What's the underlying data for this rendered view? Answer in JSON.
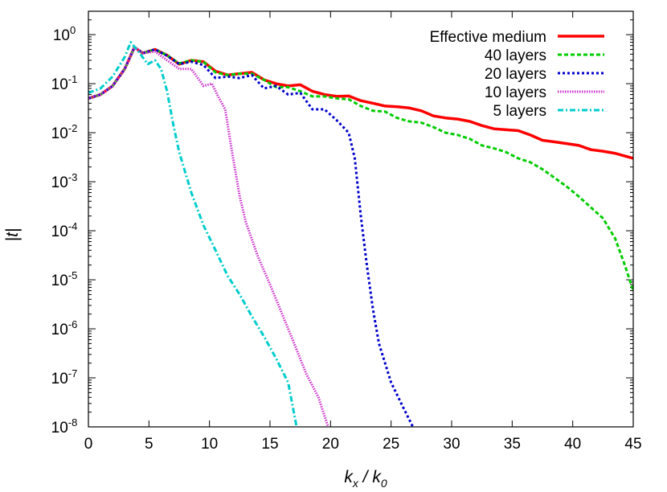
{
  "chart_data": {
    "type": "line",
    "title": "",
    "xlabel": "k_x / k_0",
    "ylabel": "|t|",
    "xlim": [
      0,
      45
    ],
    "ylim": [
      1e-08,
      3
    ],
    "yscale": "log",
    "xticks": [
      0,
      5,
      10,
      15,
      20,
      25,
      30,
      35,
      40,
      45
    ],
    "yticks": [
      {
        "exp": -8,
        "base": "10",
        "sup": "-8"
      },
      {
        "exp": -7,
        "base": "10",
        "sup": "-7"
      },
      {
        "exp": -6,
        "base": "10",
        "sup": "-6"
      },
      {
        "exp": -5,
        "base": "10",
        "sup": "-5"
      },
      {
        "exp": -4,
        "base": "10",
        "sup": "-4"
      },
      {
        "exp": -3,
        "base": "10",
        "sup": "-3"
      },
      {
        "exp": -2,
        "base": "10",
        "sup": "-2"
      },
      {
        "exp": -1,
        "base": "10",
        "sup": "-1"
      },
      {
        "exp": 0,
        "base": "10",
        "sup": "0"
      }
    ],
    "legend_position": "top-right",
    "series": [
      {
        "name": "Effective medium",
        "color": "#ff0000",
        "dash": "solid",
        "points": [
          [
            0,
            0.05
          ],
          [
            1,
            0.06
          ],
          [
            2,
            0.09
          ],
          [
            3,
            0.2
          ],
          [
            3.8,
            0.55
          ],
          [
            4.5,
            0.42
          ],
          [
            5.5,
            0.5
          ],
          [
            6.5,
            0.38
          ],
          [
            7.5,
            0.25
          ],
          [
            8.5,
            0.3
          ],
          [
            9.5,
            0.28
          ],
          [
            10.5,
            0.18
          ],
          [
            11.5,
            0.15
          ],
          [
            12.5,
            0.16
          ],
          [
            13.5,
            0.17
          ],
          [
            14.5,
            0.12
          ],
          [
            15.5,
            0.1
          ],
          [
            16.5,
            0.09
          ],
          [
            17.5,
            0.095
          ],
          [
            18.5,
            0.07
          ],
          [
            19.5,
            0.06
          ],
          [
            20.5,
            0.055
          ],
          [
            21.5,
            0.056
          ],
          [
            22.5,
            0.045
          ],
          [
            23.5,
            0.04
          ],
          [
            24.5,
            0.035
          ],
          [
            25.5,
            0.034
          ],
          [
            26.5,
            0.032
          ],
          [
            27.5,
            0.028
          ],
          [
            28.5,
            0.022
          ],
          [
            29.5,
            0.02
          ],
          [
            30.5,
            0.019
          ],
          [
            31.5,
            0.017
          ],
          [
            32.5,
            0.014
          ],
          [
            33.5,
            0.012
          ],
          [
            34.5,
            0.0115
          ],
          [
            35.5,
            0.011
          ],
          [
            36.5,
            0.009
          ],
          [
            37.5,
            0.007
          ],
          [
            38.5,
            0.0065
          ],
          [
            39.5,
            0.006
          ],
          [
            40.5,
            0.0055
          ],
          [
            41.5,
            0.0045
          ],
          [
            42.5,
            0.0042
          ],
          [
            43.5,
            0.0038
          ],
          [
            45,
            0.003
          ]
        ]
      },
      {
        "name": "40 layers",
        "color": "#00cc00",
        "dash": "dashed",
        "points": [
          [
            0,
            0.05
          ],
          [
            1,
            0.06
          ],
          [
            2,
            0.09
          ],
          [
            3,
            0.2
          ],
          [
            3.8,
            0.55
          ],
          [
            4.5,
            0.42
          ],
          [
            5.5,
            0.5
          ],
          [
            6.5,
            0.38
          ],
          [
            7.5,
            0.26
          ],
          [
            8.5,
            0.3
          ],
          [
            9.5,
            0.28
          ],
          [
            10.5,
            0.17
          ],
          [
            11.5,
            0.15
          ],
          [
            12.5,
            0.16
          ],
          [
            13.5,
            0.16
          ],
          [
            14.5,
            0.12
          ],
          [
            15.5,
            0.085
          ],
          [
            16.5,
            0.085
          ],
          [
            17.5,
            0.07
          ],
          [
            18.5,
            0.055
          ],
          [
            19.5,
            0.055
          ],
          [
            20.5,
            0.05
          ],
          [
            21.5,
            0.048
          ],
          [
            22.5,
            0.035
          ],
          [
            23.5,
            0.028
          ],
          [
            24.5,
            0.027
          ],
          [
            25.5,
            0.02
          ],
          [
            26.5,
            0.017
          ],
          [
            27.5,
            0.016
          ],
          [
            28.5,
            0.013
          ],
          [
            29.5,
            0.01
          ],
          [
            30.5,
            0.009
          ],
          [
            31.5,
            0.0075
          ],
          [
            32.5,
            0.0055
          ],
          [
            33.5,
            0.0048
          ],
          [
            34.5,
            0.004
          ],
          [
            35.5,
            0.003
          ],
          [
            36.5,
            0.0025
          ],
          [
            37.5,
            0.0018
          ],
          [
            38.5,
            0.0012
          ],
          [
            39.5,
            0.0008
          ],
          [
            40.5,
            0.0005
          ],
          [
            41.5,
            0.0003
          ],
          [
            42.5,
            0.00018
          ],
          [
            43.5,
            7e-05
          ],
          [
            44.3,
            2e-05
          ],
          [
            45,
            6e-06
          ]
        ]
      },
      {
        "name": "20 layers",
        "color": "#0000cc",
        "dash": "dotted",
        "points": [
          [
            0,
            0.05
          ],
          [
            1,
            0.06
          ],
          [
            2,
            0.09
          ],
          [
            3,
            0.2
          ],
          [
            3.8,
            0.55
          ],
          [
            4.5,
            0.42
          ],
          [
            5.5,
            0.5
          ],
          [
            6.5,
            0.37
          ],
          [
            7.5,
            0.25
          ],
          [
            8.5,
            0.28
          ],
          [
            9.5,
            0.24
          ],
          [
            10.5,
            0.13
          ],
          [
            11.5,
            0.14
          ],
          [
            12.5,
            0.13
          ],
          [
            13.5,
            0.15
          ],
          [
            14.5,
            0.08
          ],
          [
            15.5,
            0.09
          ],
          [
            16.5,
            0.06
          ],
          [
            17.5,
            0.065
          ],
          [
            18.5,
            0.03
          ],
          [
            19.5,
            0.03
          ],
          [
            20.5,
            0.018
          ],
          [
            21.5,
            0.01
          ],
          [
            22,
            0.003
          ],
          [
            22.5,
            0.0002
          ],
          [
            23,
            2e-05
          ],
          [
            23.5,
            2.5e-06
          ],
          [
            24,
            5e-07
          ],
          [
            25,
            8e-08
          ],
          [
            26,
            2.5e-08
          ],
          [
            26.8,
            1e-08
          ]
        ]
      },
      {
        "name": "10 layers",
        "color": "#cc33cc",
        "dash": "fine-dotted",
        "points": [
          [
            0,
            0.05
          ],
          [
            1,
            0.06
          ],
          [
            2,
            0.09
          ],
          [
            3,
            0.2
          ],
          [
            3.8,
            0.55
          ],
          [
            4.5,
            0.42
          ],
          [
            5.5,
            0.45
          ],
          [
            6.5,
            0.3
          ],
          [
            7.5,
            0.2
          ],
          [
            8.5,
            0.2
          ],
          [
            9.5,
            0.09
          ],
          [
            10.2,
            0.1
          ],
          [
            10.8,
            0.05
          ],
          [
            11.3,
            0.03
          ],
          [
            11.8,
            0.005
          ],
          [
            12.5,
            0.0005
          ],
          [
            13,
            0.00015
          ],
          [
            14,
            3e-05
          ],
          [
            15,
            8e-06
          ],
          [
            16,
            2e-06
          ],
          [
            17,
            5e-07
          ],
          [
            18,
            1.2e-07
          ],
          [
            19,
            4e-08
          ],
          [
            19.8,
            1e-08
          ]
        ]
      },
      {
        "name": "5 layers",
        "color": "#00cccc",
        "dash": "dash-dot",
        "points": [
          [
            0,
            0.065
          ],
          [
            1,
            0.08
          ],
          [
            2,
            0.14
          ],
          [
            3,
            0.35
          ],
          [
            3.5,
            0.7
          ],
          [
            4.3,
            0.4
          ],
          [
            4.9,
            0.25
          ],
          [
            5.5,
            0.3
          ],
          [
            6,
            0.2
          ],
          [
            6.5,
            0.07
          ],
          [
            7,
            0.015
          ],
          [
            7.5,
            0.004
          ],
          [
            8.5,
            0.0006
          ],
          [
            9.5,
            0.00013
          ],
          [
            10.5,
            4e-05
          ],
          [
            11.5,
            1.2e-05
          ],
          [
            12.5,
            5e-06
          ],
          [
            13.5,
            1.8e-06
          ],
          [
            14.5,
            7e-07
          ],
          [
            15.5,
            2.5e-07
          ],
          [
            16.5,
            8e-08
          ],
          [
            17.2,
            1e-08
          ]
        ]
      }
    ]
  }
}
